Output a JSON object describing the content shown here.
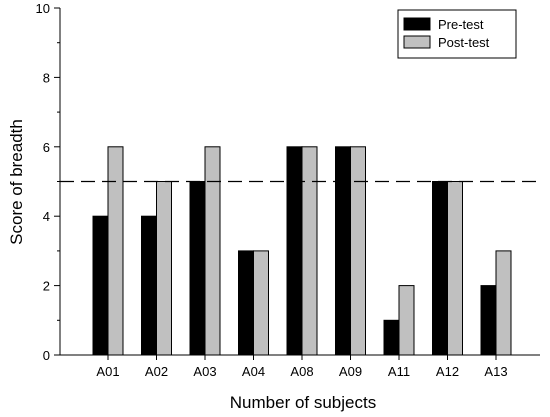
{
  "chart_data": {
    "type": "bar",
    "xlabel": "Number of subjects",
    "ylabel": "Score of breadth",
    "categories": [
      "A01",
      "A02",
      "A03",
      "A04",
      "A08",
      "A09",
      "A11",
      "A12",
      "A13"
    ],
    "series": [
      {
        "name": "Pre-test",
        "values": [
          4,
          4,
          5,
          3,
          6,
          6,
          1,
          5,
          2
        ],
        "color": "#000000"
      },
      {
        "name": "Post-test",
        "values": [
          6,
          5,
          6,
          3,
          6,
          6,
          2,
          5,
          3
        ],
        "color": "#c0c0c0"
      }
    ],
    "ylim": [
      0,
      10
    ],
    "yticks": [
      0,
      2,
      4,
      6,
      8,
      10
    ],
    "reference_line": {
      "y": 5,
      "style": "dashed"
    },
    "grid": false,
    "legend": {
      "position": "top-right"
    }
  }
}
